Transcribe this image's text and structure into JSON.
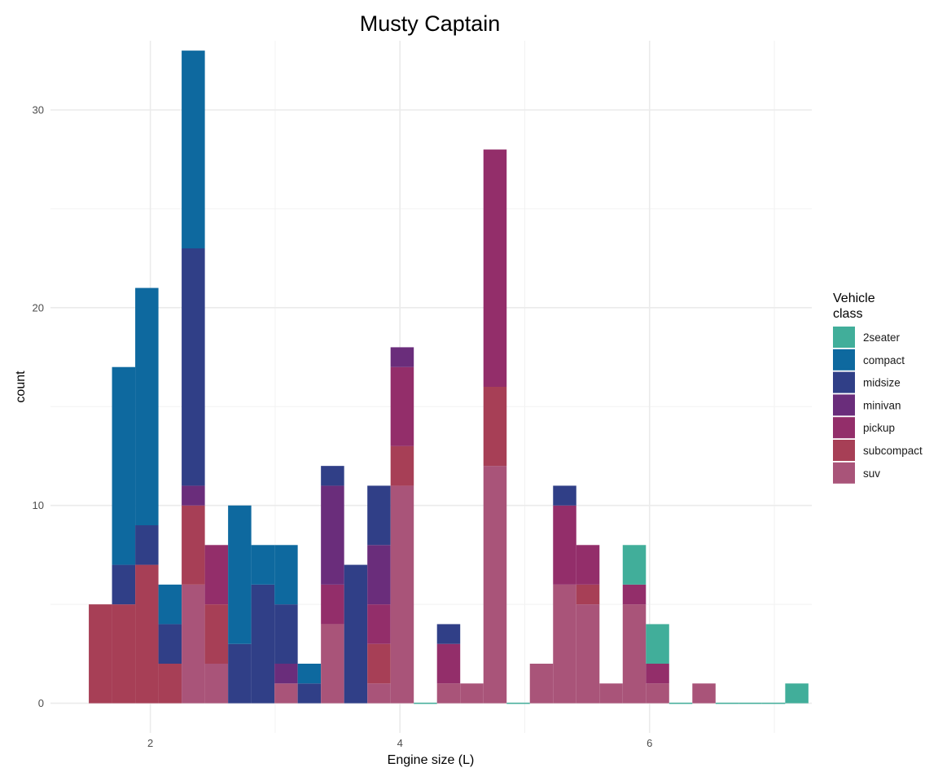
{
  "chart_data": {
    "type": "bar",
    "subtype": "stacked-histogram",
    "title": "Musty Captain",
    "xlabel": "Engine size (L)",
    "ylabel": "count",
    "xlim": [
      1.2,
      7.3
    ],
    "ylim": [
      -1.5,
      33.5
    ],
    "x_ticks": [
      2,
      4,
      6
    ],
    "x_tick_labels": [
      "2",
      "4",
      "6"
    ],
    "y_ticks": [
      0,
      10,
      20,
      30
    ],
    "y_tick_labels": [
      "0",
      "10",
      "20",
      "30"
    ],
    "x_minor_gridlines": [
      3,
      5,
      7
    ],
    "y_minor_gridlines": [
      5,
      15,
      25
    ],
    "grid": true,
    "bin_width": 0.186,
    "bin_centers": [
      1.6,
      1.786,
      1.972,
      2.158,
      2.344,
      2.53,
      2.716,
      2.902,
      3.088,
      3.274,
      3.46,
      3.646,
      3.832,
      4.018,
      4.204,
      4.39,
      4.576,
      4.762,
      4.948,
      5.134,
      5.32,
      5.506,
      5.692,
      5.878,
      6.064,
      6.25,
      6.436,
      6.622,
      6.808,
      6.994,
      7.18
    ],
    "series": [
      {
        "name": "suv",
        "color": "#A95479",
        "values": [
          0,
          0,
          0,
          0,
          6,
          2,
          0,
          0,
          1,
          0,
          4,
          0,
          1,
          11,
          0,
          1,
          1,
          12,
          0,
          2,
          6,
          5,
          1,
          5,
          1,
          0,
          1,
          0,
          0,
          0,
          0
        ]
      },
      {
        "name": "subcompact",
        "color": "#A73F56",
        "values": [
          5,
          5,
          7,
          2,
          4,
          3,
          0,
          0,
          0,
          0,
          0,
          0,
          2,
          2,
          0,
          0,
          0,
          4,
          0,
          0,
          0,
          1,
          0,
          0,
          0,
          0,
          0,
          0,
          0,
          0,
          0
        ]
      },
      {
        "name": "pickup",
        "color": "#932E6A",
        "values": [
          0,
          0,
          0,
          0,
          0,
          3,
          0,
          0,
          0,
          0,
          2,
          0,
          2,
          4,
          0,
          2,
          0,
          12,
          0,
          0,
          4,
          2,
          0,
          1,
          1,
          0,
          0,
          0,
          0,
          0,
          0
        ]
      },
      {
        "name": "minivan",
        "color": "#6A2D7B",
        "values": [
          0,
          0,
          0,
          0,
          1,
          0,
          0,
          0,
          1,
          0,
          5,
          0,
          3,
          1,
          0,
          0,
          0,
          0,
          0,
          0,
          0,
          0,
          0,
          0,
          0,
          0,
          0,
          0,
          0,
          0,
          0
        ]
      },
      {
        "name": "midsize",
        "color": "#303F87",
        "values": [
          0,
          2,
          2,
          2,
          12,
          0,
          3,
          6,
          3,
          1,
          1,
          7,
          3,
          0,
          0,
          1,
          0,
          0,
          0,
          0,
          1,
          0,
          0,
          0,
          0,
          0,
          0,
          0,
          0,
          0,
          0
        ]
      },
      {
        "name": "compact",
        "color": "#0E699F",
        "values": [
          0,
          10,
          12,
          2,
          10,
          0,
          7,
          2,
          3,
          1,
          0,
          0,
          0,
          0,
          0,
          0,
          0,
          0,
          0,
          0,
          0,
          0,
          0,
          0,
          0,
          0,
          0,
          0,
          0,
          0,
          0
        ]
      },
      {
        "name": "2seater",
        "color": "#41AE9A",
        "values": [
          0,
          0,
          0,
          0,
          0,
          0,
          0,
          0,
          0,
          0,
          0,
          0,
          0,
          0,
          0,
          0,
          0,
          0,
          0,
          0,
          0,
          0,
          0,
          2,
          2,
          0,
          0,
          0,
          0,
          0,
          1
        ]
      }
    ],
    "legend": {
      "title": "Vehicle\nclass",
      "title_lines": [
        "Vehicle",
        "class"
      ],
      "placement": "right",
      "order": [
        "2seater",
        "compact",
        "midsize",
        "minivan",
        "pickup",
        "subcompact",
        "suv"
      ]
    }
  }
}
